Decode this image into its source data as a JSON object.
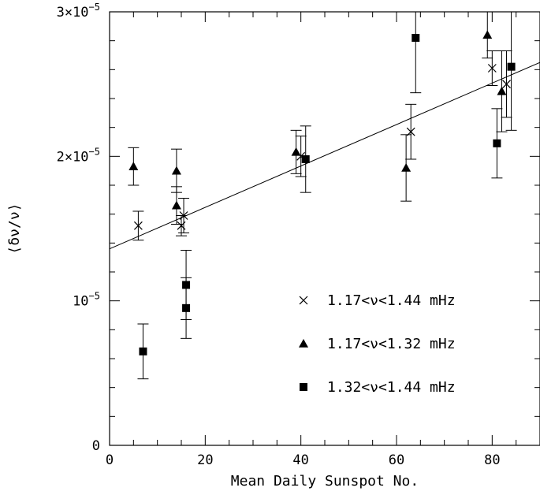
{
  "chart_data": {
    "type": "scatter",
    "xlabel": "Mean Daily Sunspot No.",
    "ylabel": "⟨δν/ν⟩",
    "xlim": [
      0,
      90
    ],
    "ylim": [
      0,
      3e-05
    ],
    "x_ticks": [
      {
        "value": 0,
        "label": "0"
      },
      {
        "value": 20,
        "label": "20"
      },
      {
        "value": 40,
        "label": "40"
      },
      {
        "value": 60,
        "label": "60"
      },
      {
        "value": 80,
        "label": "80"
      }
    ],
    "y_ticks": [
      {
        "value": 0,
        "base": "0",
        "exp": ""
      },
      {
        "value": 1e-05,
        "base": "10",
        "exp": "−5"
      },
      {
        "value": 2e-05,
        "base": "2×10",
        "exp": "−5"
      },
      {
        "value": 3e-05,
        "base": "3×10",
        "exp": "−5"
      }
    ],
    "grid": false,
    "legend_position": "bottom-right",
    "fit_line": {
      "x": [
        0,
        90
      ],
      "y": [
        1.36e-05,
        2.65e-05
      ]
    },
    "series": [
      {
        "name": "1.17<ν<1.44 mHz",
        "marker": "cross",
        "points": [
          {
            "x": 6,
            "y": 1.52e-05,
            "err": 1e-06
          },
          {
            "x": 15,
            "y": 1.52e-05,
            "err": 7e-07
          },
          {
            "x": 15.5,
            "y": 1.59e-05,
            "err": 1.2e-06
          },
          {
            "x": 40,
            "y": 2e-05,
            "err": 1.4e-06
          },
          {
            "x": 63,
            "y": 2.17e-05,
            "err": 1.9e-06
          },
          {
            "x": 80,
            "y": 2.61e-05,
            "err": 1.2e-06
          },
          {
            "x": 83,
            "y": 2.5e-05,
            "err": 2.3e-06
          }
        ]
      },
      {
        "name": "1.17<ν<1.32 mHz",
        "marker": "triangle",
        "points": [
          {
            "x": 5,
            "y": 1.93e-05,
            "err": 1.3e-06
          },
          {
            "x": 14,
            "y": 1.9e-05,
            "err": 1.5e-06
          },
          {
            "x": 14,
            "y": 1.66e-05,
            "err": 1.3e-06
          },
          {
            "x": 39,
            "y": 2.03e-05,
            "err": 1.5e-06
          },
          {
            "x": 62,
            "y": 1.92e-05,
            "err": 2.3e-06
          },
          {
            "x": 79,
            "y": 2.84e-05,
            "err": 1.6e-06
          },
          {
            "x": 82,
            "y": 2.45e-05,
            "err": 2.8e-06
          }
        ]
      },
      {
        "name": "1.32<ν<1.44 mHz",
        "marker": "square",
        "points": [
          {
            "x": 7,
            "y": 6.5e-06,
            "err": 1.9e-06
          },
          {
            "x": 16,
            "y": 1.11e-05,
            "err": 2.4e-06
          },
          {
            "x": 16,
            "y": 9.5e-06,
            "err": 2.1e-06
          },
          {
            "x": 41,
            "y": 1.98e-05,
            "err": 2.3e-06
          },
          {
            "x": 64,
            "y": 2.82e-05,
            "err": 3.8e-06
          },
          {
            "x": 81,
            "y": 2.09e-05,
            "err": 2.4e-06
          },
          {
            "x": 84,
            "y": 2.62e-05,
            "err": 4.4e-06
          }
        ]
      }
    ]
  }
}
